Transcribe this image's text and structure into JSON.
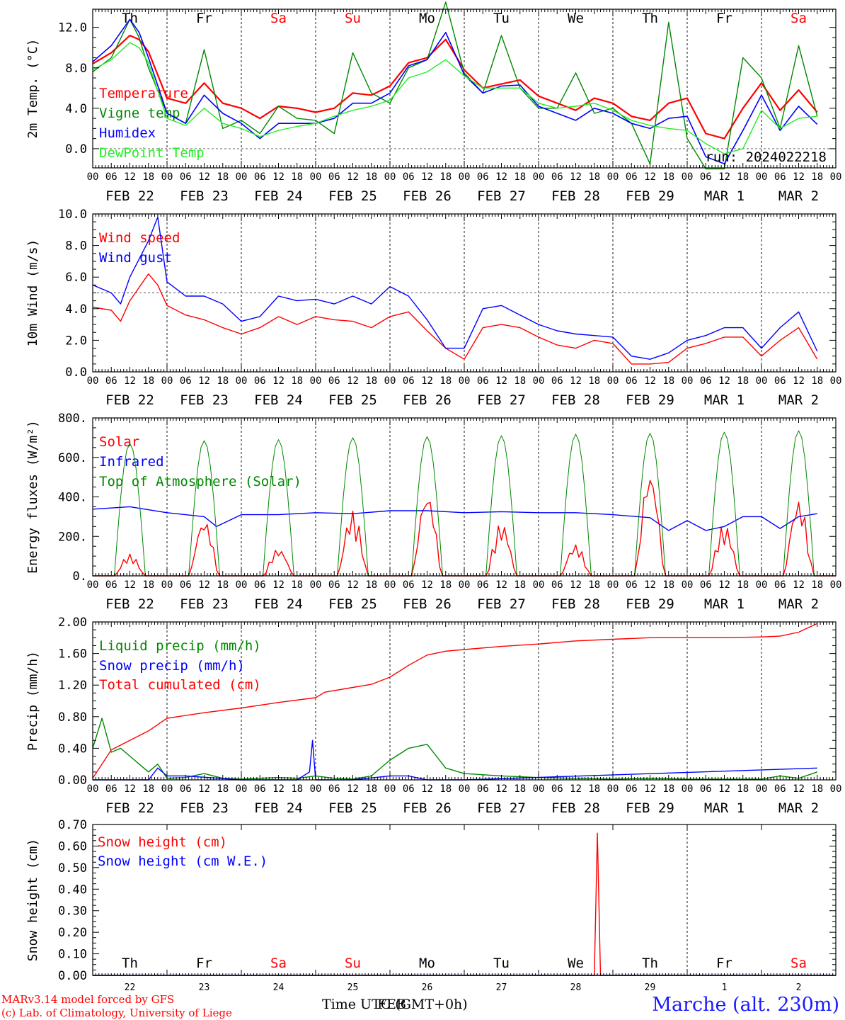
{
  "footer": {
    "model_line": "MARv3.14 model forced by GFS",
    "copyright_line": "(c) Lab. of Climatology, University of Liege",
    "time_label_a": "Time UTC (GMT+0h)",
    "time_label_b": "FEB",
    "station": "Marche (alt. 230m)"
  },
  "colors": {
    "red": "#ff0000",
    "green": "#008800",
    "blue": "#0000ff",
    "lightgreen": "#22ee22"
  },
  "chart_data": [
    {
      "type": "line",
      "ylabel": "2m Temp. (°C)",
      "ylim": [
        -1.9,
        13.8
      ],
      "yticks": [
        0,
        4,
        8,
        12
      ],
      "ytick_labels": [
        "0.0",
        "4.0",
        "8.0",
        "12.0"
      ],
      "hline": 0,
      "annotation": "run: 2024022218",
      "day_labels": [
        "Th",
        "Fr",
        "Sa",
        "Su",
        "Mo",
        "Tu",
        "We",
        "Th",
        "Fr",
        "Sa"
      ],
      "date_labels": [
        "FEB 22",
        "FEB 23",
        "FEB 24",
        "FEB 25",
        "FEB 26",
        "FEB 27",
        "FEB 28",
        "FEB 29",
        "MAR  1",
        "MAR  2"
      ],
      "x_unit": "hours since FEB 22 00 UTC",
      "series": [
        {
          "name": "Temperature",
          "color": "red",
          "x": [
            0,
            6,
            12,
            15,
            18,
            24,
            30,
            36,
            42,
            48,
            54,
            60,
            66,
            72,
            78,
            84,
            90,
            96,
            102,
            108,
            114,
            120,
            126,
            132,
            138,
            144,
            150,
            156,
            162,
            168,
            174,
            180,
            186,
            192,
            198,
            204,
            210,
            216,
            222,
            228,
            234
          ],
          "y": [
            8.4,
            9.5,
            11.2,
            10.8,
            9.6,
            5.0,
            4.5,
            6.5,
            4.5,
            4.0,
            3.0,
            4.2,
            4.0,
            3.6,
            4.0,
            5.5,
            5.3,
            6.2,
            8.5,
            9.0,
            10.8,
            7.8,
            6.0,
            6.4,
            6.8,
            5.2,
            4.5,
            3.8,
            5.0,
            4.5,
            3.2,
            2.8,
            4.5,
            5.0,
            1.5,
            1.0,
            4.0,
            6.5,
            3.8,
            5.8,
            3.6
          ]
        },
        {
          "name": "Vigne temp",
          "color": "green",
          "x": [
            0,
            6,
            12,
            15,
            18,
            24,
            30,
            36,
            42,
            48,
            54,
            60,
            66,
            72,
            78,
            84,
            90,
            96,
            102,
            108,
            114,
            120,
            126,
            132,
            138,
            144,
            150,
            156,
            162,
            168,
            174,
            180,
            186,
            192,
            198,
            204,
            210,
            216,
            222,
            228,
            234
          ],
          "y": [
            7.6,
            9.0,
            12.8,
            11.0,
            8.0,
            3.5,
            2.5,
            9.8,
            2.0,
            2.8,
            1.5,
            4.2,
            3.0,
            2.8,
            1.5,
            9.5,
            5.5,
            4.5,
            8.0,
            8.8,
            14.5,
            7.5,
            5.5,
            11.2,
            6.0,
            4.0,
            4.0,
            7.5,
            3.5,
            4.0,
            2.5,
            -1.5,
            12.5,
            1.0,
            -2.0,
            -2.0,
            9.0,
            7.0,
            2.0,
            10.2,
            3.2
          ]
        },
        {
          "name": "Humidex",
          "color": "blue",
          "x": [
            0,
            6,
            12,
            15,
            18,
            24,
            30,
            36,
            42,
            48,
            54,
            60,
            66,
            72,
            78,
            84,
            90,
            96,
            102,
            108,
            114,
            120,
            126,
            132,
            138,
            144,
            150,
            156,
            162,
            168,
            174,
            180,
            186,
            192,
            198,
            204,
            210,
            216,
            222,
            228,
            234
          ],
          "y": [
            8.6,
            10.2,
            12.8,
            11.5,
            9.0,
            3.5,
            2.5,
            5.3,
            3.5,
            2.5,
            1.0,
            2.5,
            2.5,
            2.5,
            3.0,
            4.5,
            4.5,
            5.5,
            8.2,
            8.8,
            11.5,
            7.3,
            5.5,
            6.2,
            6.3,
            4.2,
            3.5,
            2.8,
            4.0,
            3.5,
            2.5,
            2.0,
            3.0,
            3.2,
            -0.8,
            -1.5,
            1.8,
            5.3,
            1.8,
            4.2,
            2.4
          ]
        },
        {
          "name": "DewPoint Temp",
          "color": "lightgreen",
          "x": [
            0,
            6,
            12,
            15,
            18,
            24,
            30,
            36,
            42,
            48,
            54,
            60,
            66,
            72,
            78,
            84,
            90,
            96,
            102,
            108,
            114,
            120,
            126,
            132,
            138,
            144,
            150,
            156,
            162,
            168,
            174,
            180,
            186,
            192,
            198,
            204,
            210,
            216,
            222,
            228,
            234
          ],
          "y": [
            7.8,
            8.8,
            10.5,
            10.0,
            8.5,
            3.0,
            2.3,
            4.0,
            2.5,
            2.0,
            1.2,
            1.8,
            2.2,
            2.5,
            3.2,
            3.8,
            4.2,
            4.8,
            7.0,
            7.6,
            8.8,
            7.2,
            6.0,
            6.0,
            6.0,
            4.5,
            4.0,
            4.2,
            4.5,
            3.8,
            2.8,
            2.3,
            2.0,
            1.8,
            0.5,
            -0.5,
            0.0,
            3.8,
            2.0,
            3.0,
            3.2
          ]
        }
      ]
    },
    {
      "type": "line",
      "ylabel": "10m Wind (m/s)",
      "ylim": [
        0,
        10
      ],
      "yticks": [
        0,
        2,
        4,
        6,
        8,
        10
      ],
      "ytick_labels": [
        "0.0",
        "2.0",
        "4.0",
        "6.0",
        "8.0",
        "10.0"
      ],
      "hline": 5,
      "date_labels": [
        "FEB 22",
        "FEB 23",
        "FEB 24",
        "FEB 25",
        "FEB 26",
        "FEB 27",
        "FEB 28",
        "FEB 29",
        "MAR  1",
        "MAR  2"
      ],
      "x_unit": "hours since FEB 22 00 UTC",
      "series": [
        {
          "name": "Wind speed",
          "color": "red",
          "x": [
            0,
            6,
            9,
            12,
            18,
            21,
            24,
            30,
            36,
            42,
            48,
            54,
            60,
            66,
            72,
            78,
            84,
            90,
            96,
            102,
            108,
            114,
            120,
            126,
            132,
            138,
            144,
            150,
            156,
            162,
            168,
            174,
            180,
            186,
            192,
            198,
            204,
            210,
            216,
            222,
            228,
            234
          ],
          "y": [
            4.1,
            3.9,
            3.2,
            4.5,
            6.2,
            5.5,
            4.2,
            3.6,
            3.3,
            2.8,
            2.4,
            2.8,
            3.5,
            3.0,
            3.5,
            3.3,
            3.2,
            2.8,
            3.5,
            3.8,
            2.6,
            1.5,
            0.8,
            2.8,
            3.0,
            2.8,
            2.2,
            1.7,
            1.5,
            2.0,
            1.8,
            0.5,
            0.5,
            0.6,
            1.5,
            1.8,
            2.2,
            2.2,
            1.0,
            2.0,
            2.8,
            0.8
          ]
        },
        {
          "name": "Wind gust",
          "color": "blue",
          "x": [
            0,
            6,
            9,
            12,
            18,
            21,
            24,
            30,
            36,
            42,
            48,
            54,
            60,
            66,
            72,
            78,
            84,
            90,
            96,
            102,
            108,
            114,
            120,
            126,
            132,
            138,
            144,
            150,
            156,
            162,
            168,
            174,
            180,
            186,
            192,
            198,
            204,
            210,
            216,
            222,
            228,
            234
          ],
          "y": [
            5.5,
            5.0,
            4.3,
            6.0,
            8.3,
            9.8,
            5.7,
            4.8,
            4.8,
            4.3,
            3.2,
            3.5,
            4.8,
            4.5,
            4.6,
            4.3,
            4.8,
            4.3,
            5.4,
            4.8,
            3.3,
            1.5,
            1.5,
            4.0,
            4.2,
            3.6,
            3.0,
            2.6,
            2.4,
            2.3,
            2.2,
            1.0,
            0.8,
            1.2,
            2.0,
            2.3,
            2.8,
            2.8,
            1.5,
            2.8,
            3.8,
            1.3
          ]
        }
      ]
    },
    {
      "type": "line",
      "ylabel": "Energy fluxes (W/m²)",
      "ylim": [
        0,
        800
      ],
      "yticks": [
        0,
        200,
        400,
        600,
        800
      ],
      "ytick_labels": [
        "0.",
        "200.",
        "400.",
        "600.",
        "800."
      ],
      "date_labels": [
        "FEB 22",
        "FEB 23",
        "FEB 24",
        "FEB 25",
        "FEB 26",
        "FEB 27",
        "FEB 28",
        "FEB 29",
        "MAR  1",
        "MAR  2"
      ],
      "x_unit": "hours since FEB 22 00 UTC",
      "toa_solar_peaks_w_m2": [
        670,
        685,
        690,
        700,
        705,
        710,
        718,
        722,
        728,
        735
      ],
      "solar_peaks_w_m2": [
        110,
        290,
        140,
        330,
        430,
        270,
        160,
        540,
        260,
        390
      ],
      "series": [
        {
          "name": "Solar",
          "color": "red"
        },
        {
          "name": "Infrared",
          "color": "blue",
          "x": [
            0,
            12,
            24,
            36,
            40,
            48,
            60,
            72,
            84,
            96,
            108,
            120,
            132,
            144,
            156,
            168,
            180,
            186,
            192,
            198,
            204,
            210,
            216,
            222,
            228,
            234
          ],
          "y": [
            338,
            350,
            320,
            300,
            250,
            310,
            310,
            320,
            315,
            330,
            330,
            320,
            325,
            320,
            320,
            310,
            295,
            230,
            280,
            230,
            250,
            300,
            300,
            240,
            300,
            315
          ]
        },
        {
          "name": "Top of Atmosphere (Solar)",
          "color": "green"
        }
      ]
    },
    {
      "type": "line",
      "ylabel": "Precip (mm/h)",
      "ylim": [
        0,
        2
      ],
      "yticks": [
        0,
        0.4,
        0.8,
        1.2,
        1.6,
        2.0
      ],
      "ytick_labels": [
        "0.00",
        "0.40",
        "0.80",
        "1.20",
        "1.60",
        "2.00"
      ],
      "date_labels": [
        "FEB 22",
        "FEB 23",
        "FEB 24",
        "FEB 25",
        "FEB 26",
        "FEB 27",
        "FEB 28",
        "FEB 29",
        "MAR  1",
        "MAR  2"
      ],
      "x_unit": "hours since FEB 22 00 UTC",
      "series": [
        {
          "name": "Liquid precip (mm/h)",
          "color": "green",
          "x": [
            0,
            3,
            6,
            9,
            12,
            15,
            18,
            21,
            24,
            30,
            36,
            42,
            48,
            60,
            66,
            72,
            78,
            84,
            90,
            96,
            102,
            108,
            111,
            114,
            120,
            132,
            144,
            156,
            168,
            180,
            192,
            204,
            216,
            222,
            228,
            234
          ],
          "y": [
            0.4,
            0.78,
            0.35,
            0.4,
            0.3,
            0.2,
            0.1,
            0.2,
            0.02,
            0.03,
            0.08,
            0.02,
            0.01,
            0.03,
            0.02,
            0.05,
            0.02,
            0.01,
            0.05,
            0.25,
            0.4,
            0.45,
            0.3,
            0.15,
            0.08,
            0.05,
            0.03,
            0.02,
            0.01,
            0.02,
            0.01,
            0.01,
            0.01,
            0.05,
            0.02,
            0.1
          ]
        },
        {
          "name": "Snow precip (mm/h)",
          "color": "blue",
          "x": [
            0,
            12,
            18,
            21,
            24,
            30,
            48,
            66,
            70,
            71,
            72,
            84,
            96,
            102,
            108,
            120,
            234
          ],
          "y": [
            0,
            0,
            0,
            0.15,
            0.05,
            0.05,
            0,
            0,
            0.1,
            0.5,
            0,
            0,
            0.05,
            0.05,
            0,
            0,
            0.15
          ]
        },
        {
          "name": "Total cumulated (cm)",
          "color": "red",
          "x": [
            0,
            6,
            12,
            18,
            24,
            36,
            48,
            60,
            72,
            75,
            84,
            90,
            96,
            102,
            108,
            114,
            120,
            132,
            144,
            156,
            168,
            180,
            192,
            204,
            216,
            222,
            228,
            234
          ],
          "y": [
            0.02,
            0.38,
            0.5,
            0.62,
            0.78,
            0.85,
            0.91,
            0.98,
            1.04,
            1.11,
            1.17,
            1.21,
            1.3,
            1.45,
            1.58,
            1.63,
            1.65,
            1.69,
            1.72,
            1.76,
            1.78,
            1.8,
            1.8,
            1.8,
            1.81,
            1.82,
            1.87,
            1.98
          ]
        }
      ]
    },
    {
      "type": "line",
      "ylabel": "Snow height (cm)",
      "ylim": [
        0,
        0.7
      ],
      "yticks": [
        0,
        0.1,
        0.2,
        0.3,
        0.4,
        0.5,
        0.6,
        0.7
      ],
      "ytick_labels": [
        "0.00",
        "0.10",
        "0.20",
        "0.30",
        "0.40",
        "0.50",
        "0.60",
        "0.70"
      ],
      "day_labels": [
        "Th",
        "Fr",
        "Sa",
        "Su",
        "Mo",
        "Tu",
        "We",
        "Th",
        "Fr",
        "Sa"
      ],
      "day_numbers": [
        "22",
        "23",
        "24",
        "25",
        "26",
        "27",
        "28",
        "29",
        "1",
        "2"
      ],
      "x_unit": "hours since FEB 22 00 UTC",
      "series": [
        {
          "name": "Snow height (cm)",
          "color": "red",
          "x": [
            0,
            162,
            163,
            164,
            165,
            240
          ],
          "y": [
            0,
            0,
            0.66,
            0,
            0,
            0
          ]
        },
        {
          "name": "Snow height (cm W.E.)",
          "color": "blue",
          "x": [
            0,
            240
          ],
          "y": [
            0,
            0
          ]
        }
      ]
    }
  ]
}
